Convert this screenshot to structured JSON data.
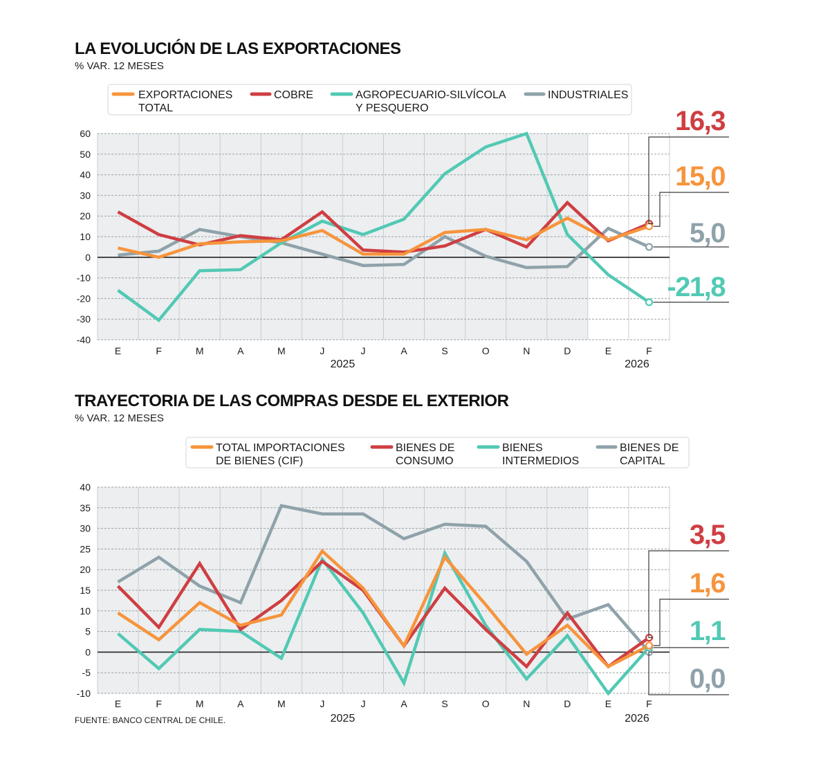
{
  "colors": {
    "orange": "#f7943c",
    "red": "#cf3e42",
    "teal": "#52c9b4",
    "grey": "#8fa2aa",
    "shaded_background": "#eceeef"
  },
  "source": "FUENTE: BANCO CENTRAL DE CHILE.",
  "chart_data": [
    {
      "type": "line",
      "title": "LA EVOLUCIÓN DE LAS EXPORTACIONES",
      "subtitle": "% VAR. 12 MESES",
      "categories": [
        "E",
        "F",
        "M",
        "A",
        "M",
        "J",
        "J",
        "A",
        "S",
        "O",
        "N",
        "D",
        "E",
        "F"
      ],
      "years": [
        {
          "label": "2025",
          "from": 0,
          "to": 11
        },
        {
          "label": "2026",
          "from": 12,
          "to": 13
        }
      ],
      "shaded_range": [
        0,
        11
      ],
      "ylim": [
        -40,
        60
      ],
      "yticks": [
        60,
        50,
        40,
        30,
        20,
        10,
        0,
        -10,
        -20,
        -30,
        -40
      ],
      "grid": true,
      "legend_position": "top",
      "series": [
        {
          "name_lines": [
            "EXPORTACIONES",
            "TOTAL"
          ],
          "color": "#f7943c",
          "values": [
            4.5,
            0,
            6.5,
            7.5,
            8,
            13,
            1.5,
            1.5,
            12,
            13.5,
            8.5,
            19,
            8.5,
            15.0
          ]
        },
        {
          "name_lines": [
            "COBRE"
          ],
          "color": "#cf3e42",
          "values": [
            22,
            11,
            6,
            10.5,
            8.5,
            22,
            3.5,
            2.5,
            5.5,
            13.5,
            5,
            26.5,
            8,
            16.3
          ]
        },
        {
          "name_lines": [
            "AGROPECUARIO-SILVÍCOLA",
            "Y PESQUERO"
          ],
          "color": "#52c9b4",
          "values": [
            -16,
            -30.5,
            -6.5,
            -6,
            7,
            17.5,
            11,
            18.5,
            40.5,
            53.5,
            60,
            11,
            -8.5,
            -21.8
          ]
        },
        {
          "name_lines": [
            "INDUSTRIALES"
          ],
          "color": "#8fa2aa",
          "values": [
            1,
            3,
            13.5,
            10,
            7,
            1.5,
            -4,
            -3.5,
            10,
            0.5,
            -5,
            -4.5,
            14,
            5.0
          ]
        }
      ],
      "callouts": [
        {
          "label": "16,3",
          "series": 1,
          "color": "#cf3e42"
        },
        {
          "label": "15,0",
          "series": 0,
          "color": "#f7943c"
        },
        {
          "label": "5,0",
          "series": 3,
          "color": "#8fa2aa"
        },
        {
          "label": "-21,8",
          "series": 2,
          "color": "#52c9b4"
        }
      ]
    },
    {
      "type": "line",
      "title": "TRAYECTORIA DE LAS COMPRAS DESDE EL EXTERIOR",
      "subtitle": "% VAR. 12 MESES",
      "categories": [
        "E",
        "F",
        "M",
        "A",
        "M",
        "J",
        "J",
        "A",
        "S",
        "O",
        "N",
        "D",
        "E",
        "F"
      ],
      "years": [
        {
          "label": "2025",
          "from": 0,
          "to": 11
        },
        {
          "label": "2026",
          "from": 12,
          "to": 13
        }
      ],
      "shaded_range": [
        0,
        11
      ],
      "ylim": [
        -10,
        40
      ],
      "yticks": [
        40,
        35,
        30,
        25,
        20,
        15,
        10,
        5,
        0,
        -5,
        -10
      ],
      "grid": true,
      "legend_position": "top",
      "series": [
        {
          "name_lines": [
            "TOTAL IMPORTACIONES",
            "DE BIENES (CIF)"
          ],
          "color": "#f7943c",
          "values": [
            9.5,
            3,
            12,
            6.5,
            9,
            24.5,
            15.5,
            1.5,
            23,
            11.5,
            -0.5,
            6.5,
            -3.5,
            1.6
          ]
        },
        {
          "name_lines": [
            "BIENES DE",
            "CONSUMO"
          ],
          "color": "#cf3e42",
          "values": [
            16,
            6,
            21.5,
            5.5,
            12.5,
            22,
            15,
            1.5,
            15.5,
            5.5,
            -3.5,
            9.5,
            -3.5,
            3.5
          ]
        },
        {
          "name_lines": [
            "BIENES",
            "INTERMEDIOS"
          ],
          "color": "#52c9b4",
          "values": [
            4.5,
            -4,
            5.5,
            5,
            -1.5,
            22.5,
            9.5,
            -7.5,
            24,
            6.5,
            -6.5,
            4,
            -10,
            1.1
          ]
        },
        {
          "name_lines": [
            "BIENES DE",
            "CAPITAL"
          ],
          "color": "#8fa2aa",
          "values": [
            17,
            23,
            16,
            12,
            35.5,
            33.5,
            33.5,
            27.5,
            31,
            30.5,
            22,
            8,
            11.5,
            0.0
          ]
        }
      ],
      "callouts": [
        {
          "label": "3,5",
          "series": 1,
          "color": "#cf3e42"
        },
        {
          "label": "1,6",
          "series": 0,
          "color": "#f7943c"
        },
        {
          "label": "1,1",
          "series": 2,
          "color": "#52c9b4"
        },
        {
          "label": "0,0",
          "series": 3,
          "color": "#8fa2aa"
        }
      ]
    }
  ]
}
